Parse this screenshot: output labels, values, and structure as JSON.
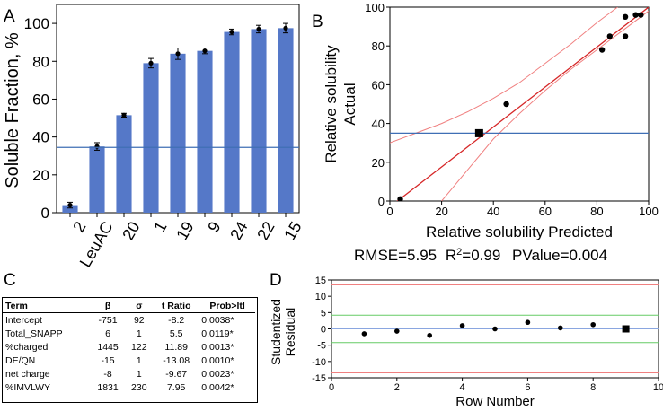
{
  "panel_labels": {
    "a": "A",
    "b": "B",
    "c": "C",
    "d": "D"
  },
  "chart_data": [
    {
      "panel": "A",
      "type": "bar",
      "title": "",
      "xlabel": "",
      "ylabel": "Soluble Fraction, %",
      "ylim": [
        0,
        110
      ],
      "yticks": [
        0,
        20,
        40,
        60,
        80,
        100
      ],
      "categories": [
        "2",
        "LeuAC",
        "20",
        "1",
        "19",
        "9",
        "24",
        "22",
        "15"
      ],
      "values": [
        4,
        35,
        51.5,
        79,
        84,
        85.5,
        95.5,
        97,
        97.5
      ],
      "errors": [
        1.5,
        2,
        1,
        2.5,
        3,
        1.5,
        1.5,
        2,
        2.5
      ],
      "reference_line": 34.5,
      "bar_color": "#5578c8",
      "line_color": "#3f6fb5"
    },
    {
      "panel": "B",
      "type": "scatter",
      "xlabel": "Relative solubility Predicted",
      "ylabel_line1": "Relative solubility",
      "ylabel_line2": "Actual",
      "xlim": [
        0,
        100
      ],
      "ylim": [
        0,
        100
      ],
      "xticks": [
        0,
        20,
        40,
        60,
        80,
        100
      ],
      "yticks": [
        0,
        20,
        40,
        60,
        80,
        100
      ],
      "points": [
        {
          "x": 4,
          "y": 1,
          "marker": "circle"
        },
        {
          "x": 45,
          "y": 50,
          "marker": "circle"
        },
        {
          "x": 82,
          "y": 78,
          "marker": "circle"
        },
        {
          "x": 85,
          "y": 85,
          "marker": "circle"
        },
        {
          "x": 91,
          "y": 85,
          "marker": "circle"
        },
        {
          "x": 91,
          "y": 95,
          "marker": "circle"
        },
        {
          "x": 95,
          "y": 96,
          "marker": "circle"
        },
        {
          "x": 97,
          "y": 96,
          "marker": "circle"
        },
        {
          "x": 34.5,
          "y": 35,
          "marker": "square"
        }
      ],
      "fit_line": [
        [
          0,
          -3
        ],
        [
          100,
          100
        ]
      ],
      "confidence_upper": [
        [
          0,
          30
        ],
        [
          10,
          35
        ],
        [
          20,
          40
        ],
        [
          30,
          46
        ],
        [
          40,
          53
        ],
        [
          50,
          61
        ],
        [
          60,
          71
        ],
        [
          70,
          81
        ],
        [
          80,
          92
        ],
        [
          88,
          100
        ]
      ],
      "confidence_lower": [
        [
          20,
          0
        ],
        [
          30,
          16
        ],
        [
          40,
          32
        ],
        [
          50,
          45
        ],
        [
          60,
          57
        ],
        [
          70,
          68
        ],
        [
          80,
          78
        ],
        [
          90,
          88
        ],
        [
          100,
          98
        ]
      ],
      "mean_line": 35,
      "stats_text": {
        "rmse": "RMSE=5.95",
        "r2_prefix": "R",
        "r2_sup": "2",
        "r2_value": "=0.99",
        "pvalue": "PValue=0.004"
      }
    },
    {
      "panel": "C",
      "type": "table",
      "headers": [
        "Term",
        "β",
        "σ",
        "t Ratio",
        "Prob>ltl"
      ],
      "rows": [
        [
          "Intercept",
          "-751",
          "92",
          "-8.2",
          "0.0038*"
        ],
        [
          "Total_SNAPP",
          "6",
          "1",
          "5.5",
          "0.0119*"
        ],
        [
          "%charged",
          "1445",
          "122",
          "11.89",
          "0.0013*"
        ],
        [
          "DE/QN",
          "-15",
          "1",
          "-13.08",
          "0.0010*"
        ],
        [
          "net charge",
          "-8",
          "1",
          "-9.67",
          "0.0023*"
        ],
        [
          "%IMVLWY",
          "1831",
          "230",
          "7.95",
          "0.0042*"
        ]
      ]
    },
    {
      "panel": "D",
      "type": "scatter",
      "xlabel": "Row Number",
      "ylabel_line1": "Studentized",
      "ylabel_line2": "Residual",
      "xlim": [
        0,
        10
      ],
      "ylim": [
        -15,
        15
      ],
      "xticks": [
        0,
        2,
        4,
        6,
        8,
        10
      ],
      "yticks": [
        15,
        10,
        5,
        0,
        -5,
        -10,
        -15
      ],
      "points": [
        {
          "x": 1,
          "y": -1.5,
          "marker": "circle"
        },
        {
          "x": 2,
          "y": -0.7,
          "marker": "circle"
        },
        {
          "x": 3,
          "y": -2,
          "marker": "circle"
        },
        {
          "x": 4,
          "y": 1,
          "marker": "circle"
        },
        {
          "x": 5,
          "y": 0,
          "marker": "circle"
        },
        {
          "x": 6,
          "y": 2,
          "marker": "circle"
        },
        {
          "x": 7,
          "y": 0.3,
          "marker": "circle"
        },
        {
          "x": 8,
          "y": 1.3,
          "marker": "circle"
        },
        {
          "x": 9,
          "y": 0,
          "marker": "square"
        }
      ],
      "red_limits": [
        13.5,
        -13.5
      ],
      "green_limits": [
        4.2,
        -4.2
      ],
      "center_line": 0
    }
  ],
  "colors": {
    "bar": "#5578c8",
    "blue_line": "#3f6fb5",
    "red_fit": "#d62728",
    "red_ci": "#f08080",
    "green": "#66cc66",
    "blue_center": "#8aa6e0"
  }
}
